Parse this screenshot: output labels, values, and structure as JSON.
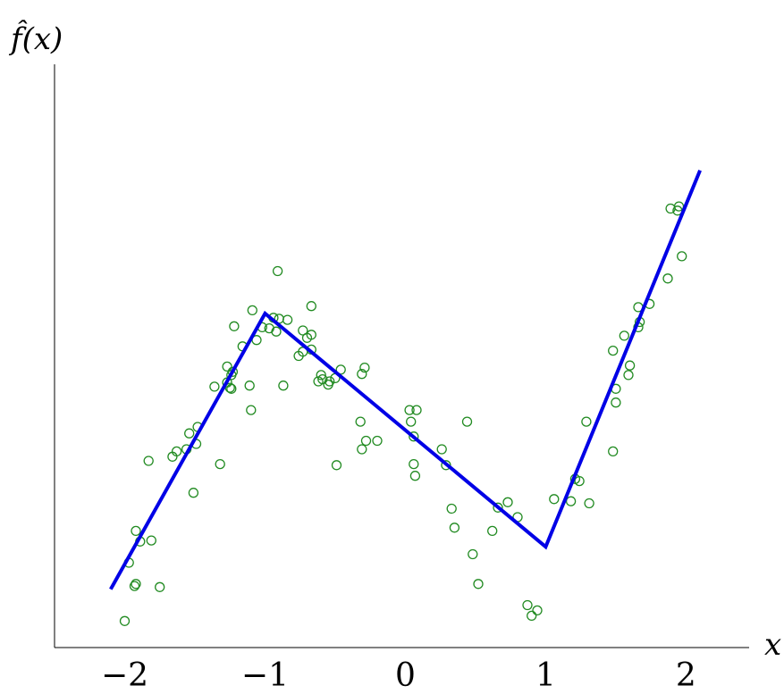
{
  "chart_data": {
    "type": "scatter",
    "title": "",
    "xlabel": "x",
    "ylabel": "f̂(x)",
    "xlim": [
      -2.5,
      2.45
    ],
    "ylim": [
      -2.4,
      3.1
    ],
    "xticks": [
      -2,
      -1,
      0,
      1,
      2
    ],
    "xtick_labels": [
      "−2",
      "−1",
      "0",
      "1",
      "2"
    ],
    "yticks_shown": false,
    "grid": false,
    "legend": "none",
    "colors": {
      "points": "#228b22",
      "fit": "#0000e6"
    },
    "series": [
      {
        "kind": "scatter",
        "points": [
          [
            -2.0,
            -2.15
          ],
          [
            -1.97,
            -1.6
          ],
          [
            -1.93,
            -1.82
          ],
          [
            -1.92,
            -1.8
          ],
          [
            -1.92,
            -1.3
          ],
          [
            -1.89,
            -1.4
          ],
          [
            -1.83,
            -0.64
          ],
          [
            -1.81,
            -1.39
          ],
          [
            -1.75,
            -1.83
          ],
          [
            -1.66,
            -0.6
          ],
          [
            -1.63,
            -0.55
          ],
          [
            -1.56,
            -0.53
          ],
          [
            -1.54,
            -0.38
          ],
          [
            -1.51,
            -0.94
          ],
          [
            -1.49,
            -0.48
          ],
          [
            -1.48,
            -0.32
          ],
          [
            -1.36,
            0.06
          ],
          [
            -1.32,
            -0.67
          ],
          [
            -1.27,
            0.25
          ],
          [
            -1.27,
            0.1
          ],
          [
            -1.25,
            0.05
          ],
          [
            -1.24,
            0.04
          ],
          [
            -1.24,
            0.17
          ],
          [
            -1.23,
            0.2
          ],
          [
            -1.22,
            0.63
          ],
          [
            -1.16,
            0.44
          ],
          [
            -1.11,
            0.07
          ],
          [
            -1.1,
            -0.16
          ],
          [
            -1.09,
            0.78
          ],
          [
            -1.06,
            0.5
          ],
          [
            -1.02,
            0.62
          ],
          [
            -0.97,
            0.61
          ],
          [
            -0.94,
            0.71
          ],
          [
            -0.92,
            0.58
          ],
          [
            -0.91,
            1.15
          ],
          [
            -0.9,
            0.7
          ],
          [
            -0.87,
            0.07
          ],
          [
            -0.84,
            0.69
          ],
          [
            -0.76,
            0.35
          ],
          [
            -0.73,
            0.39
          ],
          [
            -0.73,
            0.59
          ],
          [
            -0.7,
            0.52
          ],
          [
            -0.67,
            0.55
          ],
          [
            -0.67,
            0.41
          ],
          [
            -0.67,
            0.82
          ],
          [
            -0.62,
            0.11
          ],
          [
            -0.6,
            0.17
          ],
          [
            -0.59,
            0.13
          ],
          [
            -0.55,
            0.08
          ],
          [
            -0.54,
            0.11
          ],
          [
            -0.5,
            0.14
          ],
          [
            -0.49,
            -0.68
          ],
          [
            -0.46,
            0.22
          ],
          [
            -0.32,
            -0.27
          ],
          [
            -0.31,
            0.18
          ],
          [
            -0.31,
            -0.53
          ],
          [
            -0.29,
            0.24
          ],
          [
            -0.28,
            -0.45
          ],
          [
            -0.2,
            -0.45
          ],
          [
            0.03,
            -0.16
          ],
          [
            0.04,
            -0.27
          ],
          [
            0.06,
            -0.41
          ],
          [
            0.06,
            -0.67
          ],
          [
            0.08,
            -0.16
          ],
          [
            0.07,
            -0.78
          ],
          [
            0.26,
            -0.53
          ],
          [
            0.29,
            -0.68
          ],
          [
            0.33,
            -1.09
          ],
          [
            0.35,
            -1.27
          ],
          [
            0.44,
            -0.27
          ],
          [
            0.48,
            -1.52
          ],
          [
            0.52,
            -1.8
          ],
          [
            0.62,
            -1.3
          ],
          [
            0.66,
            -1.08
          ],
          [
            0.73,
            -1.03
          ],
          [
            0.8,
            -1.17
          ],
          [
            0.87,
            -2.0
          ],
          [
            0.9,
            -2.1
          ],
          [
            0.94,
            -2.05
          ],
          [
            1.06,
            -1.0
          ],
          [
            1.18,
            -1.02
          ],
          [
            1.21,
            -0.81
          ],
          [
            1.24,
            -0.83
          ],
          [
            1.29,
            -0.27
          ],
          [
            1.31,
            -1.04
          ],
          [
            1.48,
            0.4
          ],
          [
            1.48,
            -0.55
          ],
          [
            1.5,
            -0.09
          ],
          [
            1.5,
            0.04
          ],
          [
            1.56,
            0.54
          ],
          [
            1.59,
            0.17
          ],
          [
            1.6,
            0.26
          ],
          [
            1.66,
            0.81
          ],
          [
            1.66,
            0.62
          ],
          [
            1.67,
            0.67
          ],
          [
            1.74,
            0.84
          ],
          [
            1.87,
            1.08
          ],
          [
            1.89,
            1.74
          ],
          [
            1.94,
            1.72
          ],
          [
            1.95,
            1.76
          ],
          [
            1.97,
            1.29
          ]
        ]
      },
      {
        "kind": "line",
        "x": [
          -2.1,
          -1.0,
          1.0,
          2.1
        ],
        "y": [
          -1.85,
          0.75,
          -1.45,
          2.1
        ]
      }
    ]
  }
}
